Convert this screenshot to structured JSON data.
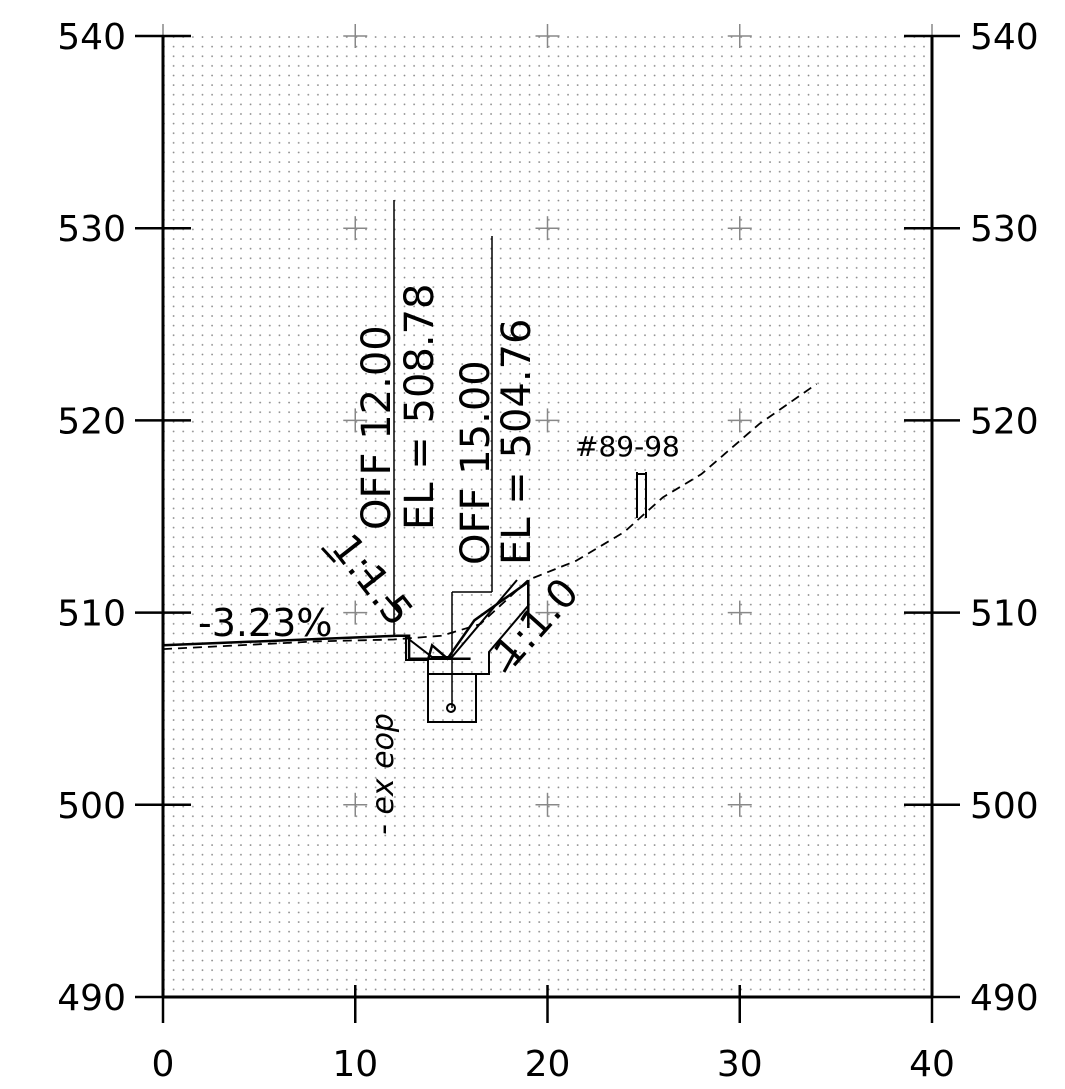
{
  "chart_data": {
    "type": "line",
    "xlim": [
      0,
      40
    ],
    "ylim": [
      490,
      540
    ],
    "x_ticks": [
      0,
      10,
      20,
      30,
      40
    ],
    "y_ticks": [
      490,
      500,
      510,
      520,
      530,
      540
    ],
    "x_tick_labels": [
      "0",
      "10",
      "20",
      "30",
      "40"
    ],
    "y_tick_labels": [
      "490",
      "500",
      "510",
      "520",
      "530",
      "540"
    ],
    "grid": "dotted",
    "series": [
      {
        "style": "solid",
        "x": [
          0,
          12.2,
          12.8,
          12.8,
          13.8,
          14.8,
          15.1,
          16,
          16,
          15.1,
          14.8,
          13.8,
          14,
          14.8,
          16.2,
          19,
          19
        ],
        "y": [
          508.3,
          508.8,
          508.8,
          507.6,
          507.6,
          507.6,
          507.6,
          507.6,
          507.6,
          507.6,
          507.6,
          507.6,
          508.3,
          507.6,
          509.6,
          511.6,
          509.2
        ]
      },
      {
        "style": "dashed",
        "x": [
          0,
          8,
          12,
          14.5,
          16.5,
          19,
          21.5,
          24,
          26,
          28,
          31,
          34
        ],
        "y": [
          508.1,
          508.5,
          508.6,
          508.8,
          509.4,
          511.7,
          512.7,
          514.2,
          516,
          517.2,
          519.8,
          521.9
        ]
      }
    ],
    "annotations": [
      {
        "text": "-3.23%",
        "x": 4.4,
        "y": 509.5
      },
      {
        "text": "1:1.5",
        "x": 10,
        "y": 511
      },
      {
        "text": "1:1.0",
        "x": 22,
        "y": 510
      },
      {
        "text": "OFF  12.00",
        "x": 11.2,
        "y": 519
      },
      {
        "text": "EL  =  508.78",
        "x": 13.5,
        "y": 522
      },
      {
        "text": "OFF  15.00",
        "x": 16.2,
        "y": 516
      },
      {
        "text": "EL  =  504.76",
        "x": 18.6,
        "y": 518.5
      },
      {
        "text": "#89-98",
        "x": 23.9,
        "y": 518.8
      },
      {
        "text": "- ex eop",
        "x": 11.5,
        "y": 503
      }
    ]
  }
}
